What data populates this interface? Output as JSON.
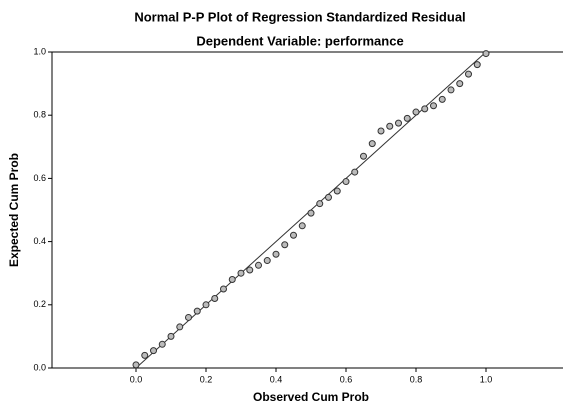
{
  "chart_data": {
    "type": "scatter",
    "title": "Normal P-P Plot of Regression Standardized Residual",
    "subtitle": "Dependent Variable: performance",
    "x_label": "Observed Cum Prob",
    "y_label": "Expected Cum Prob",
    "x": [
      0.0,
      0.025,
      0.05,
      0.075,
      0.1,
      0.125,
      0.15,
      0.175,
      0.2,
      0.225,
      0.25,
      0.275,
      0.3,
      0.325,
      0.35,
      0.375,
      0.4,
      0.425,
      0.45,
      0.475,
      0.5,
      0.525,
      0.55,
      0.575,
      0.6,
      0.625,
      0.65,
      0.675,
      0.7,
      0.725,
      0.75,
      0.775,
      0.8,
      0.825,
      0.85,
      0.875,
      0.9,
      0.925,
      0.95,
      0.975,
      1.0
    ],
    "values": [
      0.01,
      0.04,
      0.055,
      0.075,
      0.1,
      0.13,
      0.16,
      0.18,
      0.2,
      0.22,
      0.25,
      0.28,
      0.3,
      0.31,
      0.325,
      0.34,
      0.36,
      0.39,
      0.42,
      0.45,
      0.49,
      0.52,
      0.54,
      0.56,
      0.59,
      0.62,
      0.67,
      0.71,
      0.75,
      0.765,
      0.775,
      0.79,
      0.81,
      0.82,
      0.83,
      0.85,
      0.88,
      0.9,
      0.93,
      0.96,
      0.995
    ],
    "color": "#333333",
    "reference_line": {
      "x": [
        0,
        1
      ],
      "y": [
        0,
        1
      ]
    },
    "xlim": [
      -0.24,
      1.22
    ],
    "ylim": [
      0,
      1
    ],
    "xticks": [
      {
        "value": 0,
        "label": "0.0"
      },
      0.2,
      0.4,
      0.6,
      0.8,
      {
        "value": 1,
        "label": "1.0"
      }
    ],
    "yticks": [
      {
        "value": 0,
        "label": "0.0"
      },
      0.2,
      0.4,
      0.6,
      0.8,
      {
        "value": 1,
        "label": "1.0"
      }
    ]
  }
}
